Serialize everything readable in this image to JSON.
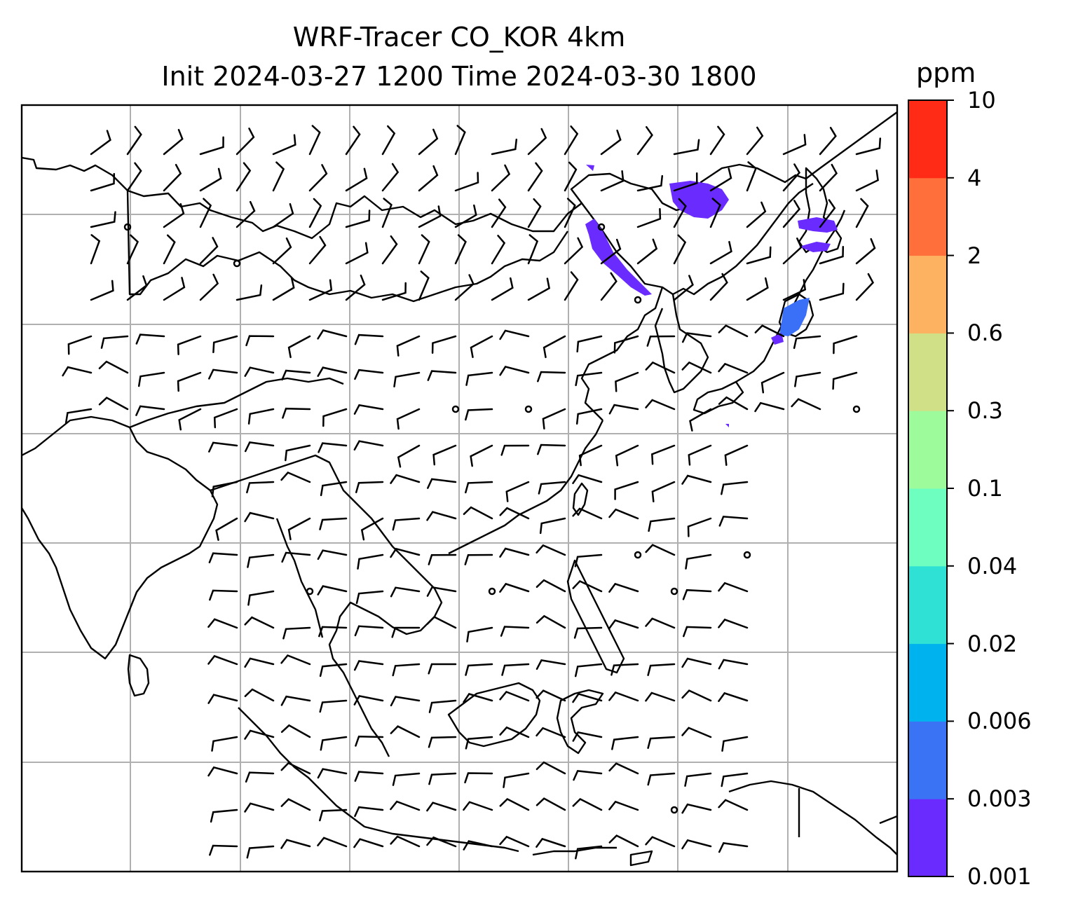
{
  "title": {
    "line1": "WRF-Tracer CO_KOR 4km",
    "line2": "Init 2024-03-27 1200 Time 2024-03-30 1800"
  },
  "map": {
    "field": "CO_KOR tracer concentration with wind barbs",
    "grid_lines": true,
    "plume_color_dominant": "#6a2bff",
    "plume_color_secondary": "#3a6ff7",
    "plumes": [
      {
        "region": "north-east near Amur / Sakhalin",
        "level": "0.001-0.003"
      },
      {
        "region": "central Kuril / Hokkaido",
        "level": "0.003-0.006"
      },
      {
        "region": "NE China strip",
        "level": "0.001-0.003"
      }
    ]
  },
  "colorbar": {
    "unit": "ppm",
    "ticks": [
      "10",
      "4",
      "2",
      "0.6",
      "0.3",
      "0.1",
      "0.04",
      "0.02",
      "0.006",
      "0.003",
      "0.001"
    ],
    "colors": [
      "#6a2bff",
      "#3a74f5",
      "#00b2ed",
      "#2fe0d4",
      "#6effc0",
      "#9dfb9b",
      "#cfe086",
      "#fdb262",
      "#ff6f3c",
      "#ff2b16"
    ]
  }
}
